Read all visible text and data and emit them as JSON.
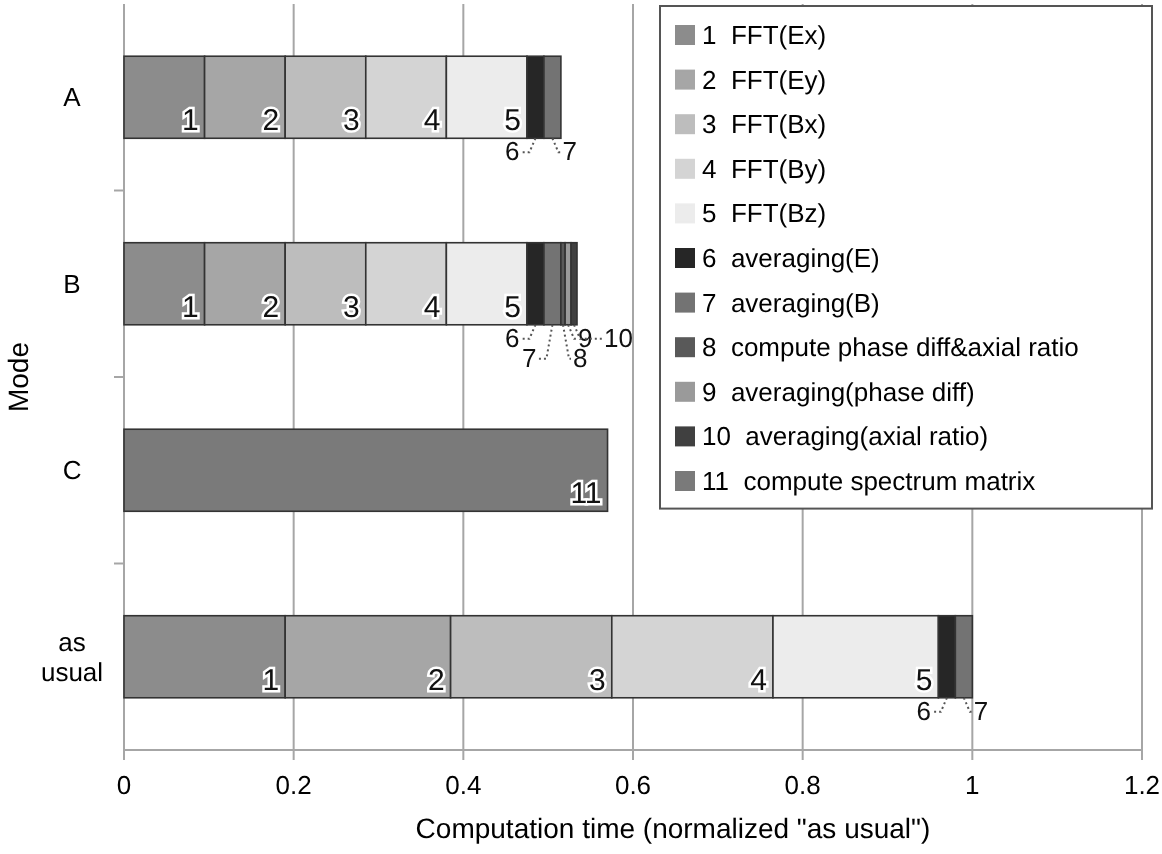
{
  "chart_data": {
    "type": "bar",
    "orientation": "horizontal",
    "stacked": true,
    "ylabel": "Mode",
    "xlabel": "Computation time (normalized \"as usual\")",
    "categories": [
      "A",
      "B",
      "C",
      "as usual"
    ],
    "xlim": [
      0,
      1.2
    ],
    "xticks": [
      0,
      0.2,
      0.4,
      0.6,
      0.8,
      1,
      1.2
    ],
    "grid": "x",
    "legend": "top right",
    "series": [
      {
        "name": "1  FFT(Ex)",
        "color": "#8c8c8c",
        "values": [
          0.095,
          0.095,
          null,
          0.19
        ]
      },
      {
        "name": "2  FFT(Ey)",
        "color": "#a6a6a6",
        "values": [
          0.095,
          0.095,
          null,
          0.195
        ]
      },
      {
        "name": "3  FFT(Bx)",
        "color": "#bdbdbd",
        "values": [
          0.095,
          0.095,
          null,
          0.19
        ]
      },
      {
        "name": "4  FFT(By)",
        "color": "#d4d4d4",
        "values": [
          0.095,
          0.095,
          null,
          0.19
        ]
      },
      {
        "name": "5  FFT(Bz)",
        "color": "#ececec",
        "values": [
          0.095,
          0.095,
          null,
          0.195
        ]
      },
      {
        "name": "6  averaging(E)",
        "color": "#262626",
        "values": [
          0.02,
          0.02,
          null,
          0.02
        ]
      },
      {
        "name": "7  averaging(B)",
        "color": "#737373",
        "values": [
          0.02,
          0.02,
          null,
          0.02
        ]
      },
      {
        "name": "8  compute phase diff&axial ratio",
        "color": "#595959",
        "values": [
          null,
          0.005,
          null,
          null
        ]
      },
      {
        "name": "9  averaging(phase diff)",
        "color": "#9a9a9a",
        "values": [
          null,
          0.007,
          null,
          null
        ]
      },
      {
        "name": "10  averaging(axial ratio)",
        "color": "#404040",
        "values": [
          null,
          0.007,
          null,
          null
        ]
      },
      {
        "name": "11  compute spectrum matrix",
        "color": "#7a7a7a",
        "values": [
          null,
          null,
          0.57,
          null
        ]
      }
    ],
    "annotations": [
      {
        "text": "1",
        "x": 0.095,
        "y": "A"
      },
      {
        "text": "2",
        "x": 0.19,
        "y": "A"
      },
      {
        "text": "3",
        "x": 0.285,
        "y": "A"
      },
      {
        "text": "4",
        "x": 0.38,
        "y": "A"
      },
      {
        "text": "5",
        "x": 0.475,
        "y": "A"
      },
      {
        "text": "6",
        "x": 0.495,
        "y": "A"
      },
      {
        "text": "7",
        "x": 0.515,
        "y": "A"
      },
      {
        "text": "1",
        "x": 0.095,
        "y": "B"
      },
      {
        "text": "2",
        "x": 0.19,
        "y": "B"
      },
      {
        "text": "3",
        "x": 0.285,
        "y": "B"
      },
      {
        "text": "4",
        "x": 0.38,
        "y": "B"
      },
      {
        "text": "5",
        "x": 0.475,
        "y": "B"
      },
      {
        "text": "6",
        "x": 0.495,
        "y": "B"
      },
      {
        "text": "7",
        "x": 0.515,
        "y": "B"
      },
      {
        "text": "8",
        "x": 0.52,
        "y": "B"
      },
      {
        "text": "9",
        "x": 0.527,
        "y": "B"
      },
      {
        "text": "10",
        "x": 0.534,
        "y": "B"
      },
      {
        "text": "11",
        "x": 0.57,
        "y": "C"
      },
      {
        "text": "1",
        "x": 0.19,
        "y": "as usual"
      },
      {
        "text": "2",
        "x": 0.385,
        "y": "as usual"
      },
      {
        "text": "3",
        "x": 0.575,
        "y": "as usual"
      },
      {
        "text": "4",
        "x": 0.765,
        "y": "as usual"
      },
      {
        "text": "5",
        "x": 0.96,
        "y": "as usual"
      },
      {
        "text": "6",
        "x": 0.98,
        "y": "as usual"
      },
      {
        "text": "7",
        "x": 1.0,
        "y": "as usual"
      }
    ]
  }
}
